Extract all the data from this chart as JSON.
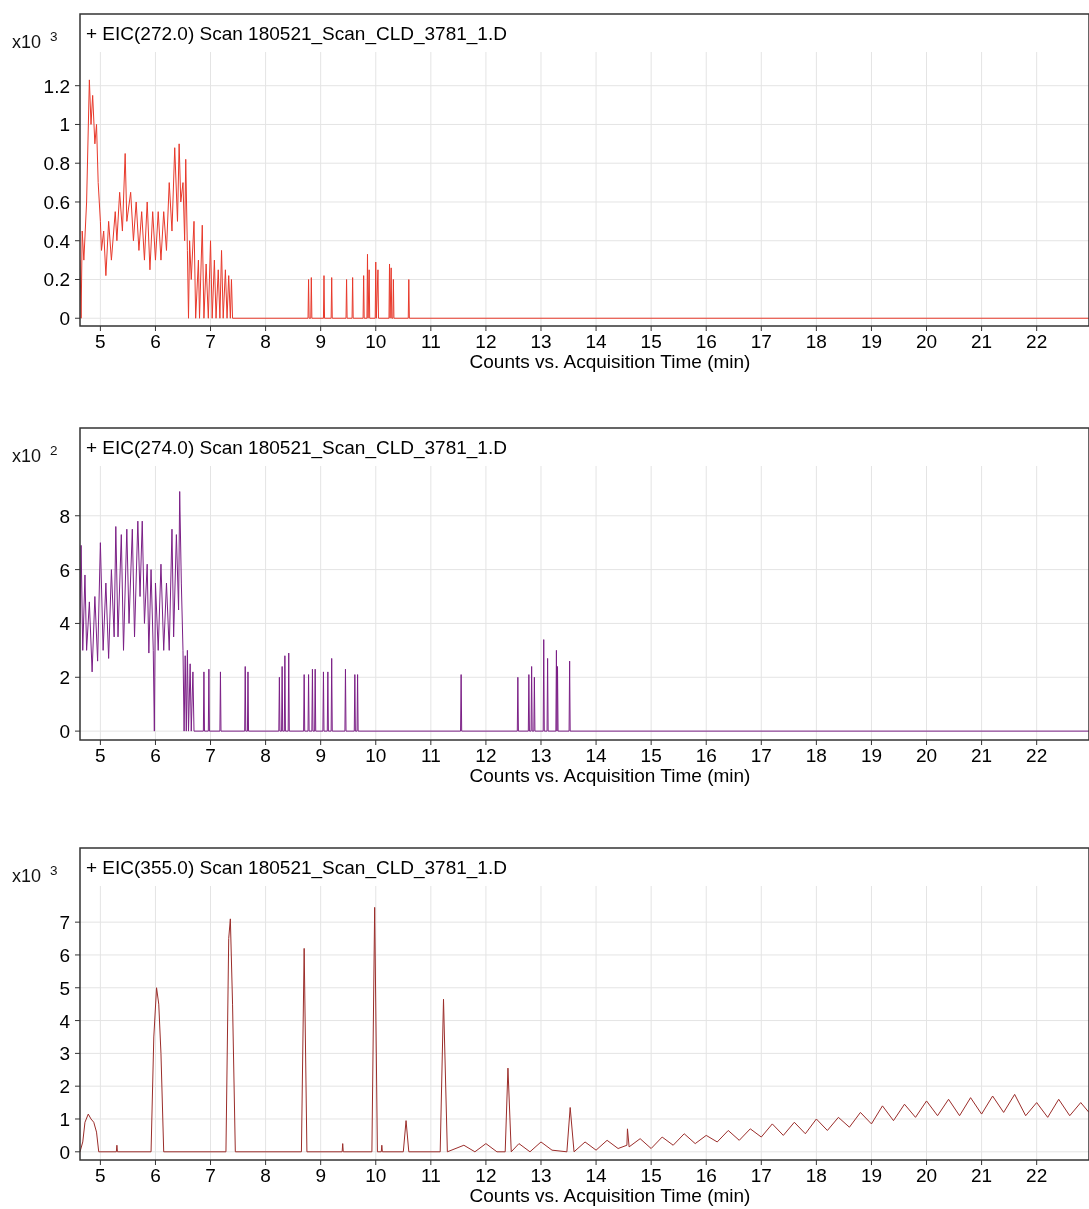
{
  "chart_data": [
    {
      "type": "line",
      "title": "+ EIC(272.0) Scan 180521_Scan_CLD_3781_1.D",
      "ylabel": "x10 $^{3}$",
      "xlabel": "Counts vs. Acquisition Time (min)",
      "xlim": [
        4.63,
        22.95
      ],
      "ylim": [
        -0.04,
        1.57
      ],
      "xticks": [
        5,
        6,
        7,
        8,
        9,
        10,
        11,
        12,
        13,
        14,
        15,
        16,
        17,
        18,
        19,
        20,
        21,
        22
      ],
      "yticks": [
        0,
        0.2,
        0.4,
        0.6,
        0.8,
        1,
        1.2
      ],
      "grid": true,
      "marker": "none",
      "line_style": "solid",
      "series": [
        {
          "color": "#e8392b",
          "x": [
            4.63,
            4.65,
            4.67,
            4.7,
            4.75,
            4.8,
            4.83,
            4.86,
            4.9,
            4.93,
            4.96,
            5.0,
            5.02,
            5.06,
            5.1,
            5.15,
            5.2,
            5.27,
            5.3,
            5.35,
            5.4,
            5.45,
            5.48,
            5.55,
            5.6,
            5.65,
            5.7,
            5.75,
            5.8,
            5.85,
            5.9,
            5.95,
            6.0,
            6.05,
            6.1,
            6.15,
            6.2,
            6.25,
            6.3,
            6.35,
            6.4,
            6.43,
            6.46,
            6.5,
            6.53,
            6.55,
            6.58,
            6.6,
            6.62,
            6.65,
            6.7,
            6.73,
            6.78,
            6.8,
            6.85,
            6.88,
            6.92,
            6.96,
            7.0,
            7.03,
            7.07,
            7.1,
            7.14,
            7.17,
            7.2,
            7.23,
            7.27,
            7.3,
            7.33,
            7.36,
            7.38,
            7.4,
            8.77,
            8.78,
            8.79,
            8.82,
            8.83,
            8.84,
            9.05,
            9.06,
            9.07,
            9.19,
            9.2,
            9.21,
            9.46,
            9.47,
            9.48,
            9.57,
            9.58,
            9.59,
            9.77,
            9.78,
            9.79,
            9.84,
            9.85,
            9.86,
            9.88,
            9.89,
            9.99,
            10.0,
            10.01,
            10.04,
            10.05,
            10.24,
            10.25,
            10.26,
            10.28,
            10.29,
            10.31,
            10.32,
            10.33,
            10.59,
            10.6,
            10.61,
            22.95
          ],
          "values": [
            0.3,
            0,
            0.45,
            0.3,
            0.6,
            1.23,
            1.0,
            1.15,
            0.9,
            1.0,
            0.7,
            0.5,
            0.35,
            0.45,
            0.22,
            0.5,
            0.3,
            0.55,
            0.4,
            0.65,
            0.45,
            0.85,
            0.5,
            0.65,
            0.4,
            0.6,
            0.35,
            0.55,
            0.3,
            0.6,
            0.25,
            0.55,
            0.3,
            0.55,
            0.3,
            0.55,
            0.35,
            0.7,
            0.45,
            0.88,
            0.5,
            0.9,
            0.6,
            0.7,
            0.4,
            0.82,
            0.35,
            0,
            0.4,
            0.2,
            0.5,
            0,
            0.3,
            0,
            0.48,
            0,
            0.28,
            0,
            0.4,
            0,
            0.3,
            0,
            0.25,
            0,
            0.35,
            0,
            0.25,
            0,
            0.22,
            0,
            0.2,
            0,
            0,
            0.2,
            0,
            0,
            0.21,
            0,
            0,
            0.22,
            0,
            0,
            0.21,
            0,
            0,
            0.2,
            0,
            0,
            0.21,
            0,
            0,
            0.22,
            0,
            0,
            0.33,
            0,
            0.25,
            0,
            0,
            0.29,
            0,
            0.25,
            0,
            0,
            0.28,
            0,
            0.26,
            0,
            0,
            0.2,
            0,
            0,
            0.2,
            0,
            0
          ]
        }
      ]
    },
    {
      "type": "line",
      "title": "+ EIC(274.0) Scan 180521_Scan_CLD_3781_1.D",
      "ylabel": "x10 $^{2}$",
      "xlabel": "Counts vs. Acquisition Time (min)",
      "xlim": [
        4.63,
        22.95
      ],
      "ylim": [
        -0.33,
        11.26
      ],
      "xticks": [
        5,
        6,
        7,
        8,
        9,
        10,
        11,
        12,
        13,
        14,
        15,
        16,
        17,
        18,
        19,
        20,
        21,
        22
      ],
      "yticks": [
        0,
        2,
        4,
        6,
        8
      ],
      "grid": true,
      "marker": "none",
      "line_style": "solid",
      "series": [
        {
          "color": "#7b1f86",
          "x": [
            4.63,
            4.65,
            4.68,
            4.72,
            4.75,
            4.8,
            4.85,
            4.9,
            4.95,
            5.0,
            5.05,
            5.1,
            5.15,
            5.2,
            5.25,
            5.28,
            5.32,
            5.38,
            5.42,
            5.48,
            5.52,
            5.58,
            5.62,
            5.68,
            5.72,
            5.76,
            5.8,
            5.85,
            5.88,
            5.92,
            5.96,
            5.98,
            6.0,
            6.05,
            6.1,
            6.15,
            6.2,
            6.25,
            6.3,
            6.33,
            6.38,
            6.42,
            6.44,
            6.47,
            6.5,
            6.52,
            6.54,
            6.56,
            6.58,
            6.6,
            6.63,
            6.65,
            6.68,
            6.7,
            6.87,
            6.88,
            6.89,
            6.96,
            6.97,
            6.98,
            7.17,
            7.18,
            7.19,
            7.62,
            7.63,
            7.64,
            7.67,
            7.68,
            7.69,
            8.24,
            8.25,
            8.26,
            8.29,
            8.3,
            8.31,
            8.34,
            8.35,
            8.36,
            8.41,
            8.42,
            8.43,
            8.69,
            8.7,
            8.71,
            8.77,
            8.78,
            8.79,
            8.84,
            8.85,
            8.86,
            8.89,
            8.9,
            8.91,
            9.04,
            9.05,
            9.06,
            9.12,
            9.13,
            9.14,
            9.19,
            9.2,
            9.21,
            9.44,
            9.45,
            9.46,
            9.61,
            9.62,
            9.63,
            9.66,
            9.67,
            9.68,
            11.54,
            11.55,
            11.56,
            12.57,
            12.58,
            12.59,
            12.77,
            12.78,
            12.79,
            12.82,
            12.83,
            12.84,
            12.87,
            12.88,
            12.89,
            13.04,
            13.05,
            13.06,
            13.11,
            13.12,
            13.13,
            13.27,
            13.28,
            13.29,
            13.3,
            13.31,
            13.51,
            13.52,
            13.53,
            22.95
          ],
          "values": [
            4,
            6.9,
            3,
            5.8,
            3,
            4.8,
            2.2,
            5,
            2.6,
            7,
            3,
            5.5,
            2.7,
            6,
            3.5,
            7.6,
            3.5,
            7.3,
            3,
            7.5,
            4,
            7.5,
            3.5,
            7.8,
            5,
            7.8,
            4,
            6.2,
            2.9,
            6,
            3,
            0,
            5.5,
            3,
            6.2,
            3,
            5.5,
            3,
            7.5,
            3.5,
            7.3,
            4.5,
            8.9,
            5.5,
            3,
            0,
            2.8,
            0,
            3,
            0,
            2.5,
            0,
            2.2,
            0,
            0,
            2.2,
            0,
            0,
            2.3,
            0,
            0,
            2.2,
            0,
            0,
            2.4,
            0,
            0,
            2.2,
            0,
            0,
            2,
            0,
            0,
            2.4,
            0,
            0,
            2.8,
            0,
            0,
            2.9,
            0,
            0,
            2.1,
            0,
            0,
            2.1,
            0,
            0,
            2.3,
            0,
            0,
            2.3,
            0,
            0,
            2.2,
            0,
            0,
            2.2,
            0,
            0,
            2.7,
            0,
            0,
            2.3,
            0,
            0,
            2.1,
            0,
            0,
            2.1,
            0,
            0,
            2.1,
            0,
            0,
            2,
            0,
            0,
            2.1,
            0,
            0,
            2.4,
            0,
            0,
            2,
            0,
            0,
            3.4,
            0,
            0,
            2.7,
            0,
            0,
            3,
            0,
            2.4,
            0,
            0,
            2.6,
            0,
            0
          ]
        }
      ]
    },
    {
      "type": "line",
      "title": "+ EIC(355.0) Scan 180521_Scan_CLD_3781_1.D",
      "ylabel": "x10 $^{3}$",
      "xlabel": "Counts vs. Acquisition Time (min)",
      "xlim": [
        4.63,
        22.95
      ],
      "ylim": [
        -0.25,
        9.26
      ],
      "xticks": [
        5,
        6,
        7,
        8,
        9,
        10,
        11,
        12,
        13,
        14,
        15,
        16,
        17,
        18,
        19,
        20,
        21,
        22
      ],
      "yticks": [
        0,
        1,
        2,
        3,
        4,
        5,
        6,
        7
      ],
      "grid": true,
      "marker": "none",
      "line_style": "solid",
      "series": [
        {
          "color": "#9b2d2a",
          "x": [
            4.63,
            4.68,
            4.72,
            4.78,
            4.83,
            4.88,
            4.93,
            4.97,
            5.29,
            5.3,
            5.31,
            5.92,
            5.97,
            6.02,
            6.06,
            6.1,
            6.15,
            7.28,
            7.33,
            7.36,
            7.4,
            7.45,
            8.65,
            8.7,
            8.75,
            9.39,
            9.4,
            9.41,
            9.93,
            9.98,
            10.03,
            10.1,
            10.11,
            10.12,
            10.5,
            10.55,
            10.6,
            11.17,
            11.23,
            11.3,
            11.6,
            11.8,
            12.0,
            12.2,
            12.35,
            12.4,
            12.46,
            12.6,
            12.8,
            13.0,
            13.2,
            13.47,
            13.53,
            13.6,
            13.8,
            14.0,
            14.2,
            14.4,
            14.56,
            14.57,
            14.6,
            14.8,
            15.0,
            15.2,
            15.4,
            15.6,
            15.8,
            16.0,
            16.2,
            16.4,
            16.6,
            16.8,
            17.0,
            17.2,
            17.4,
            17.6,
            17.8,
            18.0,
            18.2,
            18.4,
            18.6,
            18.8,
            19.0,
            19.2,
            19.4,
            19.6,
            19.8,
            20.0,
            20.2,
            20.4,
            20.6,
            20.8,
            21.0,
            21.2,
            21.4,
            21.6,
            21.8,
            22.0,
            22.2,
            22.4,
            22.6,
            22.8,
            22.95
          ],
          "values": [
            0,
            0.3,
            0.9,
            1.15,
            1.0,
            0.9,
            0.6,
            0,
            0,
            0.2,
            0,
            0,
            3.5,
            5.0,
            4.5,
            3.0,
            0,
            0,
            6.5,
            7.1,
            4.5,
            0,
            0,
            6.2,
            0,
            0,
            0.25,
            0,
            0,
            7.45,
            0,
            0,
            0.2,
            0,
            0,
            0.95,
            0,
            0,
            4.65,
            0,
            0.2,
            0,
            0.25,
            0,
            0,
            2.55,
            0,
            0.25,
            0,
            0.3,
            0.05,
            0,
            1.35,
            0,
            0.3,
            0.05,
            0.35,
            0.1,
            0.2,
            0.7,
            0.15,
            0.4,
            0.1,
            0.45,
            0.2,
            0.55,
            0.25,
            0.5,
            0.3,
            0.65,
            0.35,
            0.7,
            0.45,
            0.85,
            0.5,
            0.9,
            0.55,
            1.0,
            0.65,
            1.05,
            0.75,
            1.2,
            0.85,
            1.4,
            0.95,
            1.45,
            1.05,
            1.55,
            1.1,
            1.6,
            1.1,
            1.65,
            1.15,
            1.7,
            1.2,
            1.75,
            1.1,
            1.5,
            1.05,
            1.6,
            1.1,
            1.5,
            1.2
          ]
        }
      ]
    }
  ]
}
